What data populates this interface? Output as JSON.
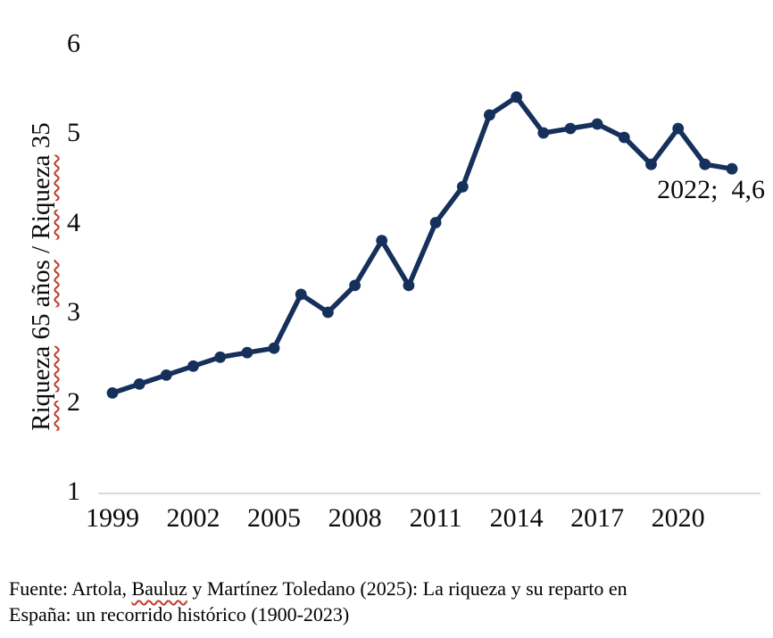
{
  "chart_data": {
    "type": "line",
    "x": [
      1999,
      2000,
      2001,
      2002,
      2003,
      2004,
      2005,
      2006,
      2007,
      2008,
      2009,
      2010,
      2011,
      2012,
      2013,
      2014,
      2015,
      2016,
      2017,
      2018,
      2019,
      2020,
      2021,
      2022
    ],
    "values": [
      2.1,
      2.2,
      2.3,
      2.4,
      2.5,
      2.55,
      2.6,
      3.2,
      3.0,
      3.3,
      3.8,
      3.3,
      4.0,
      4.4,
      5.2,
      5.4,
      5.0,
      5.05,
      5.1,
      4.95,
      4.65,
      5.05,
      4.65,
      4.6
    ],
    "title": "",
    "xlabel": "",
    "ylabel": "Riqueza 65 años / Riqueza 35",
    "ylim": [
      1,
      6
    ],
    "yticks": [
      6,
      5,
      4,
      3,
      2,
      1
    ],
    "xticks": [
      1999,
      2002,
      2005,
      2008,
      2011,
      2014,
      2017,
      2020
    ],
    "grid": false,
    "legend": "none",
    "point_label": "2022;  4,6"
  },
  "y_axis_title_parts": [
    {
      "text": "Riqueza",
      "wavy": true
    },
    {
      "text": " 65 ",
      "wavy": false
    },
    {
      "text": "años",
      "wavy": true
    },
    {
      "text": " / ",
      "wavy": false
    },
    {
      "text": "Riqueza",
      "wavy": true
    },
    {
      "text": " 35",
      "wavy": false
    }
  ],
  "annotation": {
    "last_point_label": "2022;  4,6"
  },
  "footer": {
    "line1_parts": [
      {
        "text": "Fuente: Artola, ",
        "wavy": false
      },
      {
        "text": "Bauluz",
        "wavy": true
      },
      {
        "text": " y Martínez Toledano (2025): La riqueza y su reparto en",
        "wavy": false
      }
    ],
    "line2": "España: un recorrido histórico (1900-2023)"
  },
  "colors": {
    "line": "#16305c",
    "axis_line": "#d9d9d9",
    "text": "#000000",
    "squiggle": "#c23b2e"
  }
}
